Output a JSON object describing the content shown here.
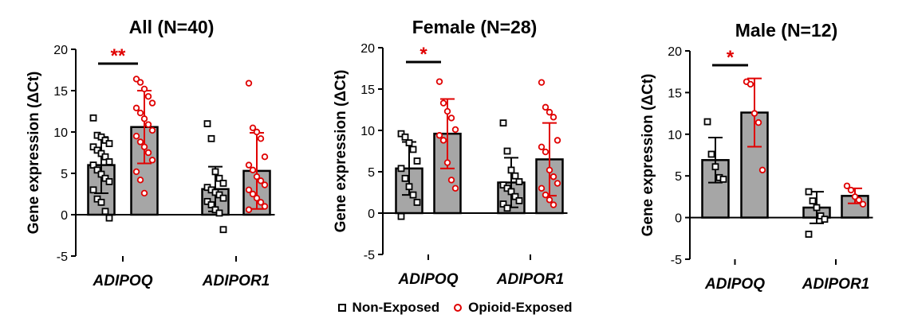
{
  "chart_data": [
    {
      "type": "bar",
      "title": "All (N=40)",
      "ylabel": "Gene expression (ΔCt)",
      "ylim": [
        -5,
        20
      ],
      "yticks": [
        "20",
        "15",
        "10",
        "5",
        "0",
        "-5"
      ],
      "categories": [
        "ADIPOQ",
        "ADIPOR1"
      ],
      "series": [
        {
          "name": "Non-Exposed",
          "color": "#000000",
          "bar_color": "#a6a6a6",
          "marker": "square",
          "values": [
            6.0,
            3.1
          ],
          "errors": [
            3.4,
            2.7
          ],
          "points": [
            [
              11.7,
              9.6,
              9.4,
              9.0,
              8.6,
              8.2,
              7.8,
              7.4,
              7.0,
              6.4,
              6.0,
              5.4,
              4.9,
              4.4,
              4.0,
              3.0,
              1.9,
              1.5,
              0.4,
              -0.4
            ],
            [
              11.0,
              9.2,
              5.2,
              4.4,
              3.8,
              3.3,
              3.0,
              2.7,
              2.4,
              2.0,
              1.6,
              1.2,
              0.6,
              0.2,
              -1.8
            ]
          ]
        },
        {
          "name": "Opioid-Exposed",
          "color": "#e00000",
          "bar_color": "#a6a6a6",
          "marker": "circle",
          "values": [
            10.6,
            5.3
          ],
          "errors": [
            4.4,
            4.6
          ],
          "points": [
            [
              16.4,
              16.0,
              15.2,
              14.3,
              13.5,
              12.9,
              12.3,
              11.6,
              10.9,
              10.2,
              9.5,
              8.8,
              8.2,
              7.5,
              6.6,
              5.2,
              4.2,
              2.6
            ],
            [
              15.9,
              10.5,
              10.0,
              9.2,
              7.0,
              6.0,
              5.4,
              4.6,
              4.1,
              3.6,
              3.0,
              2.5,
              2.0,
              1.5,
              1.0,
              0.6
            ]
          ]
        }
      ],
      "significance": [
        {
          "category": "ADIPOQ",
          "label": "**"
        }
      ]
    },
    {
      "type": "bar",
      "title": "Female (N=28)",
      "ylabel": "Gene expression (ΔCt)",
      "ylim": [
        -5,
        20
      ],
      "yticks": [
        "20",
        "15",
        "10",
        "5",
        "0",
        "-5"
      ],
      "categories": [
        "ADIPOQ",
        "ADIPOR1"
      ],
      "series": [
        {
          "name": "Non-Exposed",
          "color": "#000000",
          "bar_color": "#a6a6a6",
          "marker": "square",
          "values": [
            5.4,
            3.7
          ],
          "errors": [
            3.2,
            3.0
          ],
          "points": [
            [
              9.6,
              9.2,
              8.5,
              7.7,
              6.3,
              5.4,
              4.2,
              3.2,
              2.2,
              1.3,
              -0.4
            ],
            [
              10.9,
              7.5,
              5.2,
              4.5,
              3.8,
              3.4,
              3.0,
              2.6,
              2.0,
              1.5,
              1.1,
              0.6
            ]
          ]
        },
        {
          "name": "Opioid-Exposed",
          "color": "#e00000",
          "bar_color": "#a6a6a6",
          "marker": "circle",
          "values": [
            9.6,
            6.5
          ],
          "errors": [
            4.2,
            4.4
          ],
          "points": [
            [
              15.9,
              13.3,
              12.3,
              11.5,
              10.1,
              9.4,
              8.8,
              6.1,
              4.0,
              3.0
            ],
            [
              15.8,
              12.8,
              12.2,
              11.6,
              8.8,
              8.0,
              7.4,
              5.2,
              4.4,
              3.6,
              3.0,
              2.2,
              1.6,
              1.0
            ]
          ]
        }
      ],
      "significance": [
        {
          "category": "ADIPOQ",
          "label": "*"
        }
      ]
    },
    {
      "type": "bar",
      "title": "Male (N=12)",
      "ylabel": "Gene expression (ΔCt)",
      "ylim": [
        -5,
        20
      ],
      "yticks": [
        "20",
        "15",
        "10",
        "5",
        "0",
        "-5"
      ],
      "categories": [
        "ADIPOQ",
        "ADIPOR1"
      ],
      "series": [
        {
          "name": "Non-Exposed",
          "color": "#000000",
          "bar_color": "#a6a6a6",
          "marker": "square",
          "values": [
            6.9,
            1.2
          ],
          "errors": [
            2.7,
            1.9
          ],
          "points": [
            [
              11.5,
              7.6,
              6.1,
              4.8,
              4.6
            ],
            [
              3.1,
              2.0,
              1.2,
              0.2,
              -0.2,
              -2.0
            ]
          ]
        },
        {
          "name": "Opioid-Exposed",
          "color": "#e00000",
          "bar_color": "#a6a6a6",
          "marker": "circle",
          "values": [
            12.6,
            2.6
          ],
          "errors": [
            4.1,
            0.9
          ],
          "points": [
            [
              16.3,
              16.0,
              12.5,
              11.4,
              5.7
            ],
            [
              3.8,
              3.3,
              2.5,
              2.1,
              1.6
            ]
          ]
        }
      ],
      "significance": [
        {
          "category": "ADIPOQ",
          "label": "*"
        }
      ]
    }
  ],
  "legend": {
    "items": [
      {
        "label": "Non-Exposed",
        "marker": "square",
        "color": "#000000"
      },
      {
        "label": "Opioid-Exposed",
        "marker": "circle",
        "color": "#e00000"
      }
    ]
  }
}
